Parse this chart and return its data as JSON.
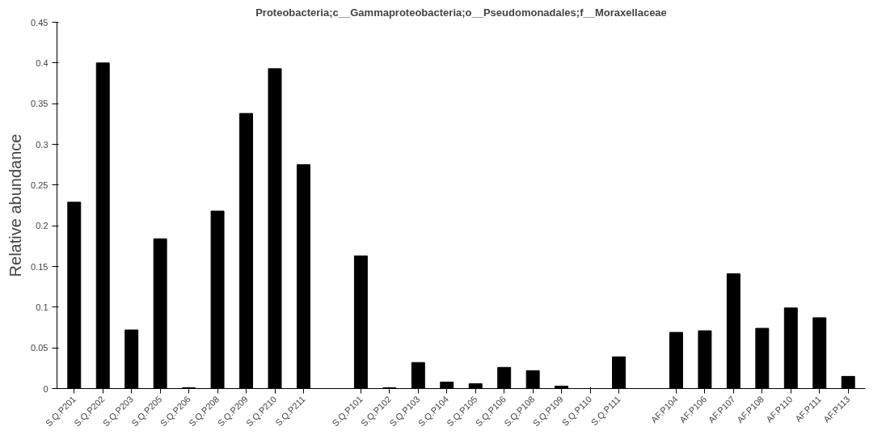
{
  "chart_data": {
    "type": "bar",
    "title": "Proteobacteria;c__Gammaproteobacteria;o__Pseudomonadales;f__Moraxellaceae",
    "ylabel": "Relative abundance",
    "categories": [
      "S.Q.P201",
      "S.Q.P202",
      "S.Q.P203",
      "S.Q.P205",
      "S.Q.P206",
      "S.Q.P208",
      "S.Q.P209",
      "S.Q.P210",
      "S.Q.P211",
      null,
      "S.Q.P101",
      "S.Q.P102",
      "S.Q.P103",
      "S.Q.P104",
      "S.Q.P105",
      "S.Q.P106",
      "S.Q.P108",
      "S.Q.P109",
      "S.Q.P110",
      "S.Q.P111",
      null,
      "AF.P104",
      "AF.P106",
      "AF.P107",
      "AF.P108",
      "AF.P110",
      "AF.P111",
      "AF.P113"
    ],
    "values": [
      0.229,
      0.4,
      0.072,
      0.184,
      0.001,
      0.218,
      0.338,
      0.393,
      0.275,
      null,
      0.163,
      0.001,
      0.032,
      0.008,
      0.006,
      0.026,
      0.022,
      0.003,
      0,
      0.039,
      null,
      0.069,
      0.071,
      0.141,
      0.074,
      0.099,
      0.087,
      0.015
    ],
    "color": "#000000",
    "ylim": [
      0,
      0.45
    ],
    "yticks": [
      0,
      0.05,
      0.1,
      0.15,
      0.2,
      0.25,
      0.3,
      0.35,
      0.4,
      0.45
    ],
    "grid": false
  }
}
